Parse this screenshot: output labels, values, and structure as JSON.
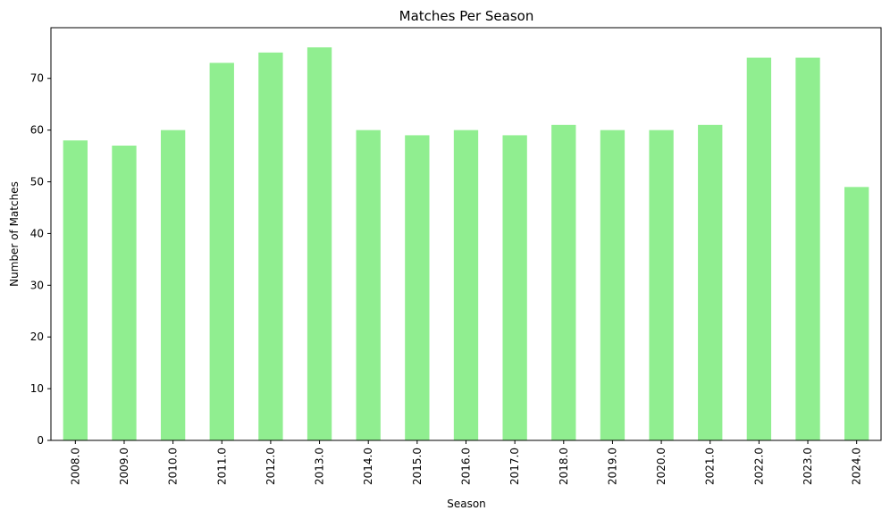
{
  "chart_data": {
    "type": "bar",
    "title": "Matches Per Season",
    "xlabel": "Season",
    "ylabel": "Number of Matches",
    "categories": [
      "2008.0",
      "2009.0",
      "2010.0",
      "2011.0",
      "2012.0",
      "2013.0",
      "2014.0",
      "2015.0",
      "2016.0",
      "2017.0",
      "2018.0",
      "2019.0",
      "2020.0",
      "2021.0",
      "2022.0",
      "2023.0",
      "2024.0"
    ],
    "values": [
      58,
      57,
      60,
      73,
      75,
      76,
      60,
      59,
      60,
      59,
      61,
      60,
      60,
      61,
      74,
      74,
      49
    ],
    "ylim": [
      0,
      79.8
    ],
    "yticks": [
      0,
      10,
      20,
      30,
      40,
      50,
      60,
      70
    ],
    "bar_color": "#90ee90",
    "grid": false,
    "legend": false
  }
}
